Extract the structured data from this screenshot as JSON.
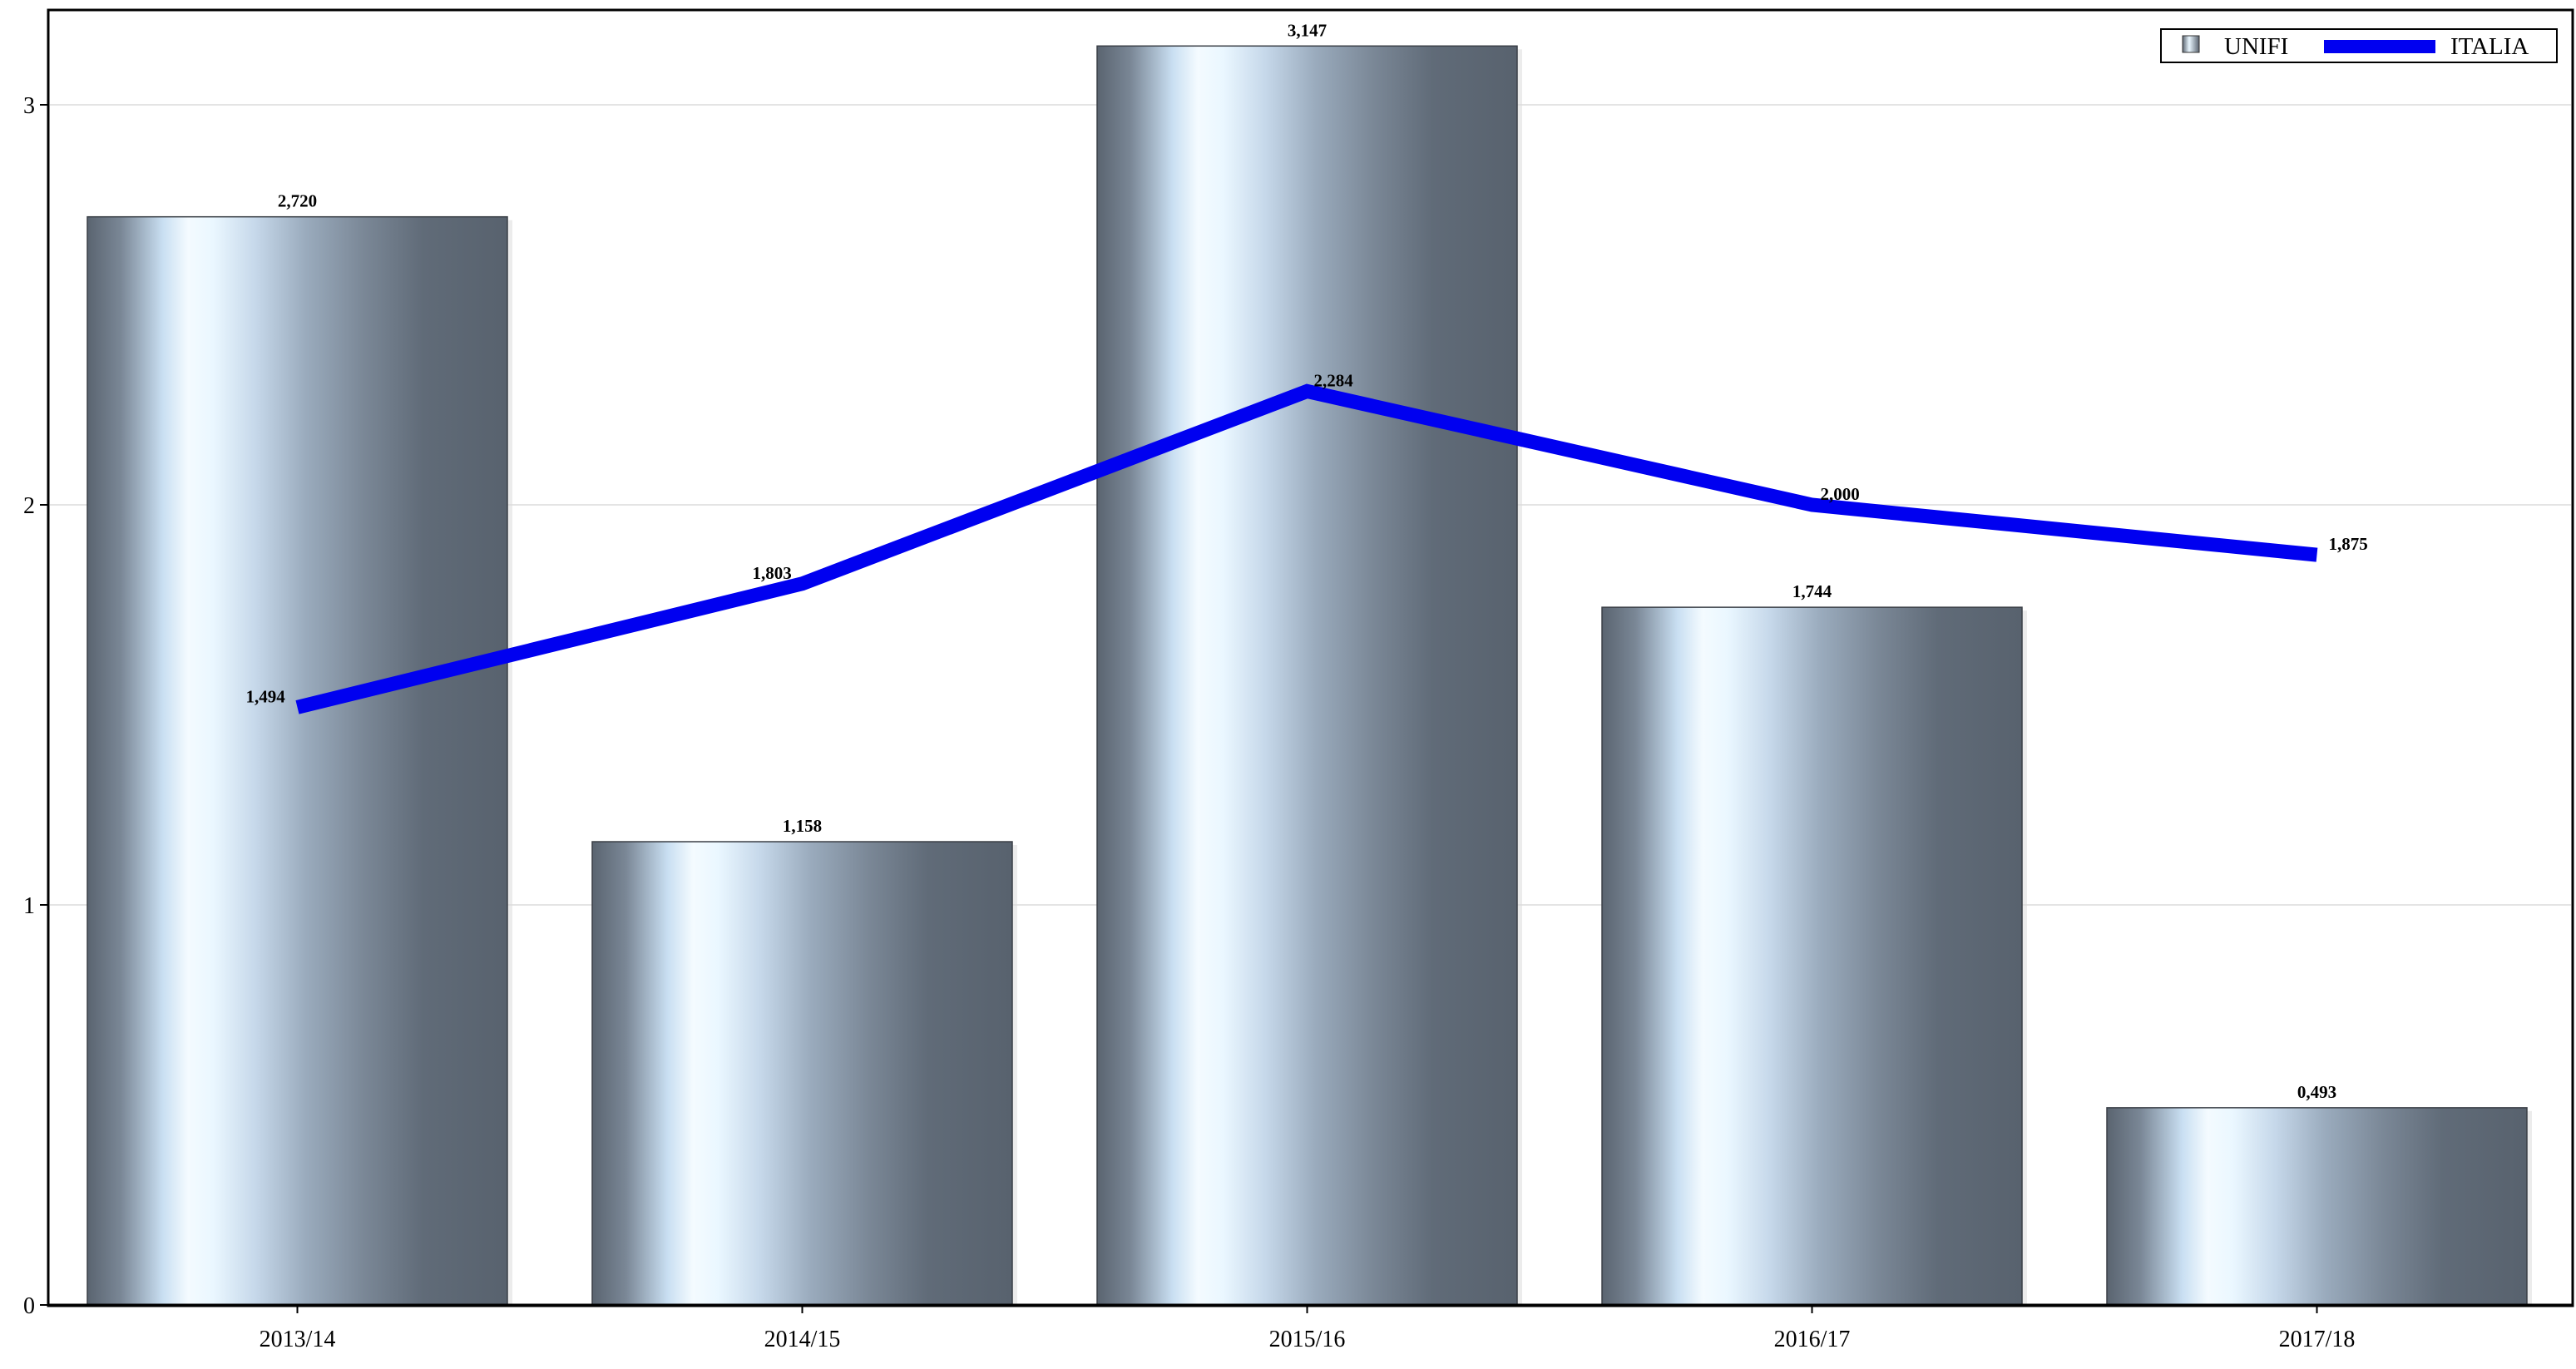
{
  "chart_data": {
    "type": "bar",
    "categories": [
      "2013/14",
      "2014/15",
      "2015/16",
      "2016/17",
      "2017/18"
    ],
    "series": [
      {
        "name": "UNIFI",
        "kind": "bar",
        "values": [
          2.72,
          1.158,
          3.147,
          1.744,
          0.493
        ],
        "labels": [
          "2,720",
          "1,158",
          "3,147",
          "1,744",
          "0,493"
        ]
      },
      {
        "name": "ITALIA",
        "kind": "line",
        "color": "#0000f0",
        "values": [
          1.494,
          1.803,
          2.284,
          2.0,
          1.875
        ],
        "labels": [
          "1,494",
          "1,803",
          "2,284",
          "2,000",
          "1,875"
        ]
      }
    ],
    "title": "",
    "xlabel": "",
    "ylabel": "",
    "ylim": [
      0,
      3.23
    ],
    "yticks": [
      {
        "value": 0,
        "label": "0"
      },
      {
        "value": 1,
        "label": "1"
      },
      {
        "value": 2,
        "label": "2"
      },
      {
        "value": 3,
        "label": "3"
      }
    ],
    "grid": true,
    "legend_position": "top-right",
    "colors": {
      "bar_dark": "#5a6470",
      "bar_light": "#e8f6ff",
      "line": "#0000f0",
      "grid": "#e4e4e4"
    }
  }
}
